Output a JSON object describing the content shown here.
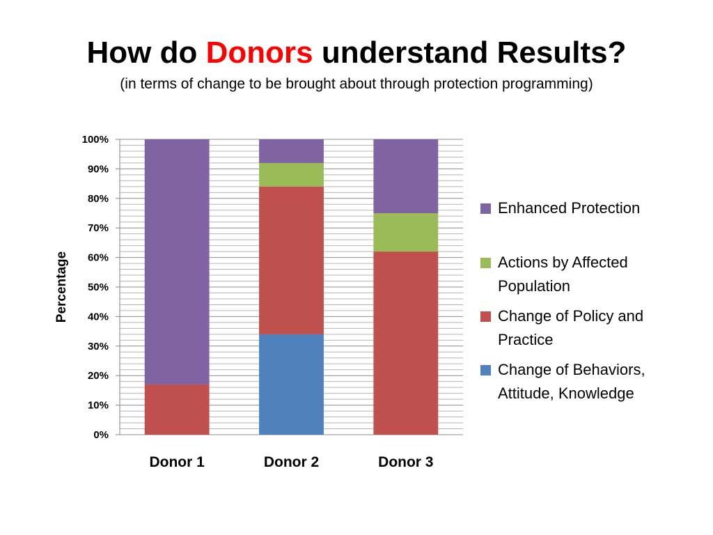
{
  "title": {
    "prefix": "How do ",
    "highlight": "Donors",
    "suffix": " understand Results?",
    "highlight_color": "#ff0000",
    "subtitle": "(in terms of change to be brought about through protection programming)"
  },
  "chart_data": {
    "type": "bar",
    "stacked": true,
    "categories": [
      "Donor 1",
      "Donor 2",
      "Donor 3"
    ],
    "ylabel": "Percentage",
    "xlabel": "",
    "ylim": [
      0,
      100
    ],
    "y_ticks": [
      "0%",
      "10%",
      "20%",
      "30%",
      "40%",
      "50%",
      "60%",
      "70%",
      "80%",
      "90%",
      "100%"
    ],
    "grid": true,
    "legend_position": "right",
    "series": [
      {
        "name": "Change of Behaviors, Attitude, Knowledge",
        "color": "#4f81bd",
        "values": [
          0,
          34,
          0
        ]
      },
      {
        "name": "Change of Policy and Practice",
        "color": "#c0504d",
        "values": [
          17,
          50,
          62
        ]
      },
      {
        "name": "Actions by Affected Population",
        "color": "#9bbb59",
        "values": [
          0,
          8,
          13
        ]
      },
      {
        "name": "Enhanced Protection",
        "color": "#8064a2",
        "values": [
          83,
          8,
          25
        ]
      }
    ]
  }
}
